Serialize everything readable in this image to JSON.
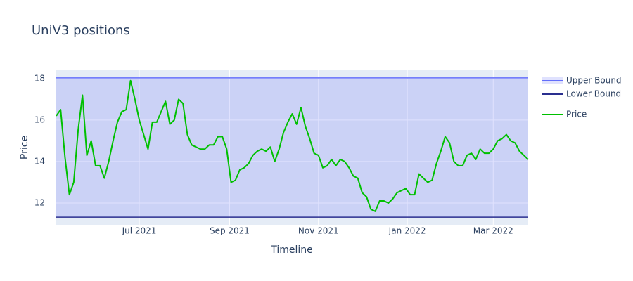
{
  "chart_data": {
    "type": "line",
    "title": "UniV3 positions",
    "x_label": "Timeline",
    "y_label": "Price",
    "xlim": [
      "2021-05-05",
      "2022-03-25"
    ],
    "ylim": [
      10.95,
      18.4
    ],
    "xticks": [
      {
        "value": "2021-07-01",
        "label": "Jul 2021"
      },
      {
        "value": "2021-09-01",
        "label": "Sep 2021"
      },
      {
        "value": "2021-11-01",
        "label": "Nov 2021"
      },
      {
        "value": "2022-01-01",
        "label": "Jan 2022"
      },
      {
        "value": "2022-03-01",
        "label": "Mar 2022"
      }
    ],
    "yticks": [
      12,
      14,
      16,
      18
    ],
    "grid": true,
    "legend": "right",
    "band_fill": "rgba(99,110,250,0.2)",
    "series": [
      {
        "name": "Upper Bound",
        "color": "#636efa",
        "x": [
          "2021-05-05",
          "2022-03-25"
        ],
        "values": [
          18.03,
          18.03
        ]
      },
      {
        "name": "Lower Bound",
        "color": "#2a2f8f",
        "x": [
          "2021-05-05",
          "2022-03-25"
        ],
        "values": [
          11.32,
          11.32
        ]
      },
      {
        "name": "Price",
        "color": "#00c000",
        "x": [
          "2021-05-05",
          "2021-05-08",
          "2021-05-11",
          "2021-05-14",
          "2021-05-17",
          "2021-05-20",
          "2021-05-23",
          "2021-05-26",
          "2021-05-29",
          "2021-06-01",
          "2021-06-04",
          "2021-06-07",
          "2021-06-10",
          "2021-06-13",
          "2021-06-16",
          "2021-06-19",
          "2021-06-22",
          "2021-06-25",
          "2021-06-28",
          "2021-07-01",
          "2021-07-04",
          "2021-07-07",
          "2021-07-10",
          "2021-07-13",
          "2021-07-16",
          "2021-07-19",
          "2021-07-22",
          "2021-07-25",
          "2021-07-28",
          "2021-07-31",
          "2021-08-03",
          "2021-08-06",
          "2021-08-09",
          "2021-08-12",
          "2021-08-15",
          "2021-08-18",
          "2021-08-21",
          "2021-08-24",
          "2021-08-27",
          "2021-08-30",
          "2021-09-02",
          "2021-09-05",
          "2021-09-08",
          "2021-09-11",
          "2021-09-14",
          "2021-09-17",
          "2021-09-20",
          "2021-09-23",
          "2021-09-26",
          "2021-09-29",
          "2021-10-02",
          "2021-10-05",
          "2021-10-08",
          "2021-10-11",
          "2021-10-14",
          "2021-10-17",
          "2021-10-20",
          "2021-10-23",
          "2021-10-26",
          "2021-10-29",
          "2021-11-01",
          "2021-11-04",
          "2021-11-07",
          "2021-11-10",
          "2021-11-13",
          "2021-11-16",
          "2021-11-19",
          "2021-11-22",
          "2021-11-25",
          "2021-11-28",
          "2021-12-01",
          "2021-12-04",
          "2021-12-07",
          "2021-12-10",
          "2021-12-13",
          "2021-12-16",
          "2021-12-19",
          "2021-12-22",
          "2021-12-25",
          "2021-12-28",
          "2021-12-31",
          "2022-01-03",
          "2022-01-06",
          "2022-01-09",
          "2022-01-12",
          "2022-01-15",
          "2022-01-18",
          "2022-01-21",
          "2022-01-24",
          "2022-01-27",
          "2022-01-30",
          "2022-02-02",
          "2022-02-05",
          "2022-02-08",
          "2022-02-11",
          "2022-02-14",
          "2022-02-17",
          "2022-02-20",
          "2022-02-23",
          "2022-02-26",
          "2022-03-01",
          "2022-03-04",
          "2022-03-07",
          "2022-03-10",
          "2022-03-13",
          "2022-03-16",
          "2022-03-19",
          "2022-03-22",
          "2022-03-25"
        ],
        "values": [
          16.2,
          16.5,
          14.2,
          12.4,
          13.0,
          15.5,
          17.2,
          14.3,
          15.0,
          13.8,
          13.8,
          13.2,
          14.0,
          15.0,
          15.9,
          16.4,
          16.5,
          17.9,
          17.0,
          16.0,
          15.3,
          14.6,
          15.9,
          15.9,
          16.4,
          16.9,
          15.8,
          16.0,
          17.0,
          16.8,
          15.3,
          14.8,
          14.7,
          14.6,
          14.6,
          14.8,
          14.8,
          15.2,
          15.2,
          14.6,
          13.0,
          13.1,
          13.6,
          13.7,
          13.9,
          14.3,
          14.5,
          14.6,
          14.5,
          14.7,
          14.0,
          14.6,
          15.4,
          15.9,
          16.3,
          15.8,
          16.6,
          15.7,
          15.1,
          14.4,
          14.3,
          13.7,
          13.8,
          14.1,
          13.8,
          14.1,
          14.0,
          13.7,
          13.3,
          13.2,
          12.5,
          12.3,
          11.7,
          11.6,
          12.1,
          12.1,
          12.0,
          12.2,
          12.5,
          12.6,
          12.7,
          12.4,
          12.4,
          13.4,
          13.2,
          13.0,
          13.1,
          13.9,
          14.5,
          15.2,
          14.9,
          14.0,
          13.8,
          13.8,
          14.3,
          14.4,
          14.1,
          14.6,
          14.4,
          14.4,
          14.6,
          15.0,
          15.1,
          15.3,
          15.0,
          14.9,
          14.5,
          14.3,
          14.1
        ]
      }
    ]
  }
}
